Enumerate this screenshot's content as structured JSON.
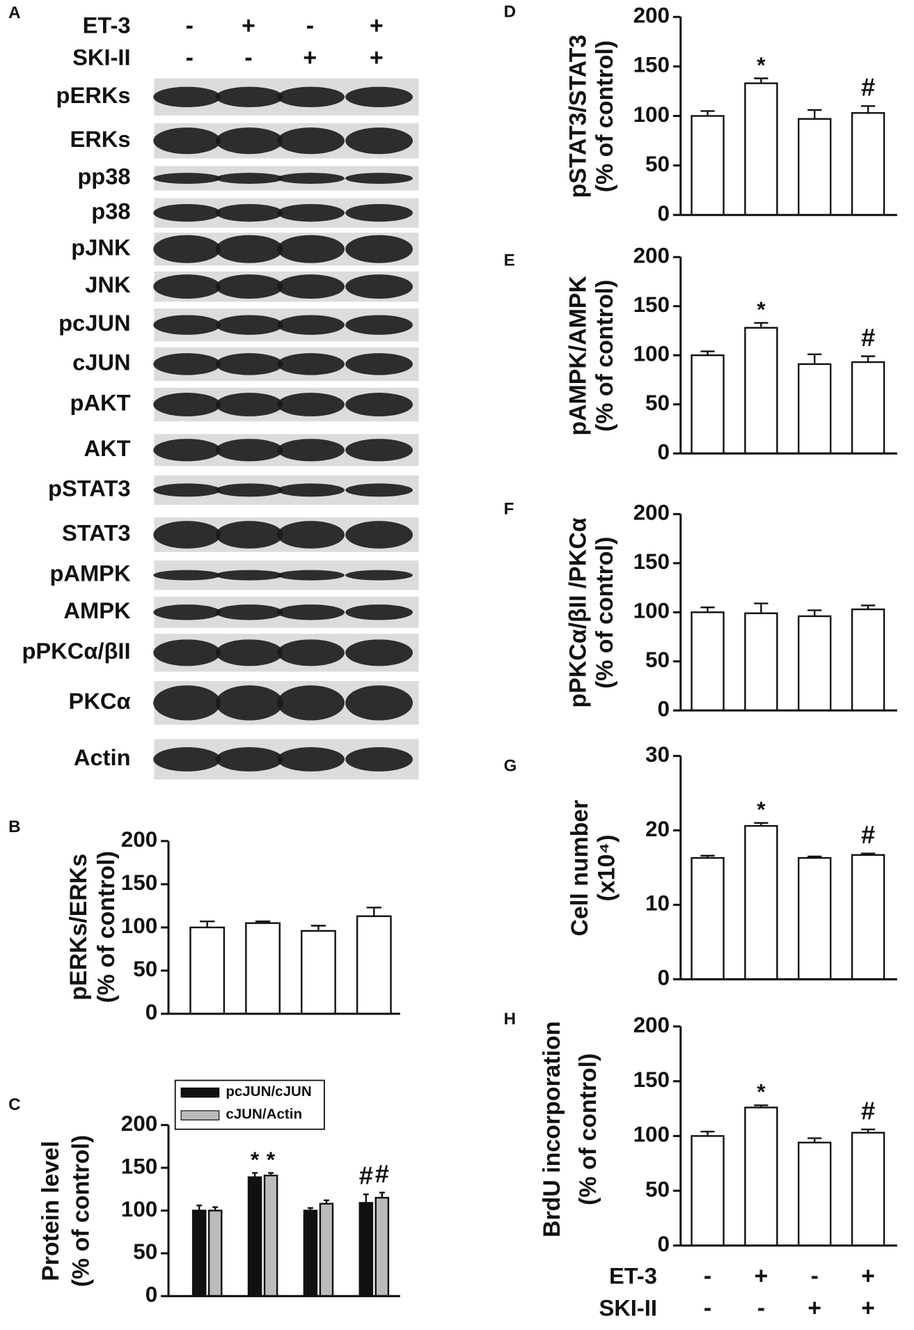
{
  "blot": {
    "label": "A",
    "conditions": [
      {
        "name": "ET-3",
        "signs": [
          "-",
          "+",
          "-",
          "+"
        ]
      },
      {
        "name": "SKI-II",
        "signs": [
          "-",
          "-",
          "+",
          "+"
        ]
      }
    ],
    "rows": [
      "pERKs",
      "ERKs",
      "pp38",
      "p38",
      "pJNK",
      "JNK",
      "pcJUN",
      "cJUN",
      "pAKT",
      "AKT",
      "pSTAT3",
      "STAT3",
      "pAMPK",
      "AMPK",
      "pPKCα/βII",
      "PKCα",
      "Actin"
    ]
  },
  "chart_data": [
    {
      "type": "bar",
      "label": "B",
      "ylabel": [
        "pERKs/ERKs",
        "(% of control)"
      ],
      "values": [
        100,
        105,
        96,
        113
      ],
      "errors": [
        7,
        2,
        6,
        10
      ],
      "color": "#ffffff",
      "ylim": [
        0,
        200
      ],
      "yticks": [
        0,
        50,
        100,
        150,
        200
      ]
    },
    {
      "type": "bar",
      "label": "C",
      "ylabel": [
        "Protein level",
        "(% of control)"
      ],
      "series": [
        {
          "name": "pcJUN/cJUN",
          "color": "#111111",
          "values": [
            100,
            139,
            100,
            109
          ],
          "errors": [
            6,
            5,
            3,
            10
          ],
          "markers": [
            null,
            "*",
            null,
            "#"
          ]
        },
        {
          "name": "cJUN/Actin",
          "color": "#bbbbbb",
          "values": [
            100,
            141,
            108,
            115
          ],
          "errors": [
            4,
            3,
            4,
            6
          ],
          "markers": [
            null,
            "*",
            null,
            "#"
          ]
        }
      ],
      "ylim": [
        0,
        200
      ],
      "yticks": [
        0,
        50,
        100,
        150,
        200
      ]
    },
    {
      "type": "bar",
      "label": "D",
      "ylabel": [
        "pSTAT3/STAT3",
        "(% of control)"
      ],
      "values": [
        100,
        133,
        97,
        103
      ],
      "errors": [
        5,
        5,
        9,
        7
      ],
      "markers": [
        null,
        "*",
        null,
        "#"
      ],
      "color": "#ffffff",
      "ylim": [
        0,
        200
      ],
      "yticks": [
        0,
        50,
        100,
        150,
        200
      ]
    },
    {
      "type": "bar",
      "label": "E",
      "ylabel": [
        "pAMPK/AMPK",
        "(% of control)"
      ],
      "values": [
        100,
        128,
        91,
        93
      ],
      "errors": [
        4,
        5,
        10,
        6
      ],
      "markers": [
        null,
        "*",
        null,
        "#"
      ],
      "color": "#ffffff",
      "ylim": [
        0,
        200
      ],
      "yticks": [
        0,
        50,
        100,
        150,
        200
      ]
    },
    {
      "type": "bar",
      "label": "F",
      "ylabel": [
        "pPKCα/βII /PKCα",
        "(% of control)"
      ],
      "values": [
        100,
        99,
        96,
        103
      ],
      "errors": [
        5,
        10,
        6,
        4
      ],
      "color": "#ffffff",
      "ylim": [
        0,
        200
      ],
      "yticks": [
        0,
        50,
        100,
        150,
        200
      ]
    },
    {
      "type": "bar",
      "label": "G",
      "ylabel": [
        "Cell number",
        "(x10⁴)"
      ],
      "values": [
        16.3,
        20.6,
        16.3,
        16.7
      ],
      "errors": [
        0.3,
        0.4,
        0.2,
        0.2
      ],
      "markers": [
        null,
        "*",
        null,
        "#"
      ],
      "color": "#ffffff",
      "ylim": [
        0,
        30
      ],
      "yticks": [
        0,
        10,
        20,
        30
      ]
    },
    {
      "type": "bar",
      "label": "H",
      "ylabel": [
        "BrdU incorporation",
        "(% of control)"
      ],
      "values": [
        100,
        126,
        94,
        103
      ],
      "errors": [
        4,
        2,
        4,
        3
      ],
      "markers": [
        null,
        "*",
        null,
        "#"
      ],
      "color": "#ffffff",
      "ylim": [
        0,
        200
      ],
      "yticks": [
        0,
        50,
        100,
        150,
        200
      ],
      "conditions": [
        {
          "name": "ET-3",
          "signs": [
            "-",
            "+",
            "-",
            "+"
          ]
        },
        {
          "name": "SKI-II",
          "signs": [
            "-",
            "-",
            "+",
            "+"
          ]
        }
      ]
    }
  ]
}
